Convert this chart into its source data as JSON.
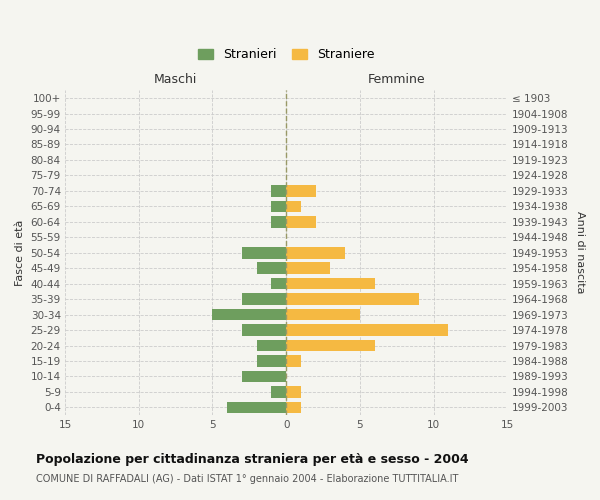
{
  "age_groups": [
    "0-4",
    "5-9",
    "10-14",
    "15-19",
    "20-24",
    "25-29",
    "30-34",
    "35-39",
    "40-44",
    "45-49",
    "50-54",
    "55-59",
    "60-64",
    "65-69",
    "70-74",
    "75-79",
    "80-84",
    "85-89",
    "90-94",
    "95-99",
    "100+"
  ],
  "birth_years": [
    "1999-2003",
    "1994-1998",
    "1989-1993",
    "1984-1988",
    "1979-1983",
    "1974-1978",
    "1969-1973",
    "1964-1968",
    "1959-1963",
    "1954-1958",
    "1949-1953",
    "1944-1948",
    "1939-1943",
    "1934-1938",
    "1929-1933",
    "1924-1928",
    "1919-1923",
    "1914-1918",
    "1909-1913",
    "1904-1908",
    "≤ 1903"
  ],
  "maschi": [
    4,
    1,
    3,
    2,
    2,
    3,
    5,
    3,
    1,
    2,
    3,
    0,
    1,
    1,
    1,
    0,
    0,
    0,
    0,
    0,
    0
  ],
  "femmine": [
    1,
    1,
    0,
    1,
    6,
    11,
    5,
    9,
    6,
    3,
    4,
    0,
    2,
    1,
    2,
    0,
    0,
    0,
    0,
    0,
    0
  ],
  "maschi_color": "#6e9e5e",
  "femmine_color": "#f5b942",
  "background_color": "#f5f5f0",
  "grid_color": "#cccccc",
  "center_line_color": "#999966",
  "title": "Popolazione per cittadinanza straniera per età e sesso - 2004",
  "subtitle": "COMUNE DI RAFFADALI (AG) - Dati ISTAT 1° gennaio 2004 - Elaborazione TUTTITALIA.IT",
  "xlabel_left": "Maschi",
  "xlabel_right": "Femmine",
  "ylabel_left": "Fasce di età",
  "ylabel_right": "Anni di nascita",
  "legend_maschi": "Stranieri",
  "legend_femmine": "Straniere",
  "xlim": 15,
  "bar_height": 0.75
}
